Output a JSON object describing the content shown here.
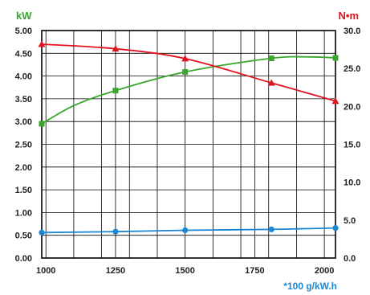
{
  "chart_data": {
    "type": "line",
    "title": "",
    "y_left": {
      "label": "kW",
      "color": "#3aa62e",
      "ticks": [
        "5.00",
        "4.50",
        "4.00",
        "3.50",
        "3.00",
        "2.50",
        "2.00",
        "1.50",
        "1.00",
        "0.50",
        "0.00"
      ],
      "ylim": [
        0,
        5
      ]
    },
    "y_right": {
      "label": "N•m",
      "color": "#e0141e",
      "ticks": [
        "30.0",
        "25.0",
        "20.0",
        "15.0",
        "10.0",
        "5.0",
        "0.0"
      ],
      "ylim": [
        0,
        30
      ]
    },
    "x_axis": {
      "ticks": [
        "1000",
        "1250",
        "1500",
        "1750",
        "2000"
      ],
      "tick_values": [
        1000,
        1250,
        1500,
        1750,
        2000
      ],
      "xlim": [
        985,
        2040
      ],
      "unit_label": "*100 g/kW.h",
      "unit_color": "#1a86d4",
      "minor_gridlines": [
        1100,
        1200,
        1300,
        1400,
        1600,
        1700,
        1800,
        1900
      ]
    },
    "series": [
      {
        "name": "",
        "axis": "left",
        "color": "#3aa62e",
        "marker": "square",
        "x": [
          985,
          1250,
          1500,
          1810,
          2040
        ],
        "y": [
          2.95,
          3.68,
          4.09,
          4.39,
          4.4
        ],
        "curve_x": [
          985,
          1100,
          1250,
          1500,
          1810,
          1950,
          2040
        ],
        "curve_y": [
          2.95,
          3.35,
          3.68,
          4.09,
          4.39,
          4.42,
          4.4
        ]
      },
      {
        "name": "",
        "axis": "right",
        "color": "#e0141e",
        "marker": "triangle",
        "x": [
          985,
          1250,
          1500,
          1810,
          2040
        ],
        "y": [
          28.2,
          27.6,
          26.3,
          23.1,
          20.7
        ],
        "curve_x": [
          985,
          1250,
          1500,
          1810,
          2040
        ],
        "curve_y": [
          28.2,
          27.6,
          26.3,
          23.1,
          20.7
        ]
      },
      {
        "name": "",
        "axis": "left",
        "color": "#1a86d4",
        "marker": "circle",
        "x": [
          985,
          1250,
          1500,
          1810,
          2040
        ],
        "y": [
          0.56,
          0.58,
          0.61,
          0.63,
          0.66
        ],
        "curve_x": [
          985,
          1250,
          1500,
          1810,
          2040
        ],
        "curve_y": [
          0.56,
          0.58,
          0.61,
          0.63,
          0.66
        ]
      }
    ],
    "grid": true,
    "legend": "none"
  }
}
